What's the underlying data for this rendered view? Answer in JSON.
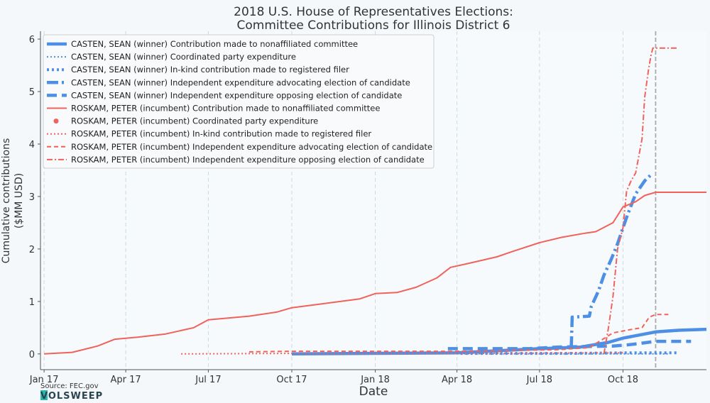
{
  "chart_data": {
    "type": "line",
    "title": [
      "2018 U.S. House of Representatives Elections:",
      "Committee Contributions for Illinois District 6"
    ],
    "xlabel": "Date",
    "ylabel": [
      "Cumulative contributions",
      "($MM USD)"
    ],
    "xlim": [
      "2016-12-28",
      "2019-01-01"
    ],
    "ylim": [
      -0.3,
      6.15
    ],
    "xticks": [
      {
        "date": "2017-01-01",
        "label": "Jan 17"
      },
      {
        "date": "2017-04-01",
        "label": "Apr 17"
      },
      {
        "date": "2017-07-01",
        "label": "Jul 17"
      },
      {
        "date": "2017-10-01",
        "label": "Oct 17"
      },
      {
        "date": "2018-01-01",
        "label": "Jan 18"
      },
      {
        "date": "2018-04-01",
        "label": "Apr 18"
      },
      {
        "date": "2018-07-01",
        "label": "Jul 18"
      },
      {
        "date": "2018-10-01",
        "label": "Oct 18"
      }
    ],
    "yticks": [
      0,
      1,
      2,
      3,
      4,
      5,
      6
    ],
    "grid": {
      "vertical": true,
      "horizontal": false
    },
    "election_line": "2018-11-06",
    "legend_position": "top-left",
    "series": [
      {
        "name": "CASTEN, SEAN (winner) Contribution made to nonaffiliated committee",
        "color": "#4e8fe6",
        "style": "solid",
        "width": 4.5,
        "points": [
          [
            "2017-10-01",
            0
          ],
          [
            "2018-04-01",
            0.02
          ],
          [
            "2018-07-01",
            0.1
          ],
          [
            "2018-08-15",
            0.13
          ],
          [
            "2018-09-15",
            0.22
          ],
          [
            "2018-10-01",
            0.3
          ],
          [
            "2018-11-06",
            0.42
          ],
          [
            "2018-12-01",
            0.45
          ],
          [
            "2019-01-01",
            0.47
          ]
        ]
      },
      {
        "name": "CASTEN, SEAN (winner) Coordinated party expenditure",
        "color": "#4e8fe6",
        "style": "dotted",
        "width": 2,
        "points": [
          [
            "2018-04-01",
            0
          ],
          [
            "2018-11-20",
            0
          ]
        ]
      },
      {
        "name": "CASTEN, SEAN (winner) In-kind contribution made to registered filer",
        "color": "#4e8fe6",
        "style": "dotted",
        "width": 4,
        "points": [
          [
            "2018-04-05",
            0.01
          ],
          [
            "2018-08-01",
            0.01
          ],
          [
            "2018-10-01",
            0.02
          ],
          [
            "2018-12-01",
            0.02
          ]
        ]
      },
      {
        "name": "CASTEN, SEAN (winner) Independent expenditure advocating election of candidate",
        "color": "#4e8fe6",
        "style": "dashdot",
        "width": 4.5,
        "points": [
          [
            "2018-08-05",
            0.12
          ],
          [
            "2018-08-06",
            0.7
          ],
          [
            "2018-08-25",
            0.72
          ],
          [
            "2018-08-27",
            0.9
          ],
          [
            "2018-09-04",
            1.2
          ],
          [
            "2018-09-10",
            1.5
          ],
          [
            "2018-09-18",
            1.8
          ],
          [
            "2018-09-25",
            2.1
          ],
          [
            "2018-10-01",
            2.4
          ],
          [
            "2018-10-06",
            2.65
          ],
          [
            "2018-10-15",
            3.05
          ],
          [
            "2018-10-25",
            3.3
          ],
          [
            "2018-10-31",
            3.4
          ]
        ]
      },
      {
        "name": "CASTEN, SEAN (winner) Independent expenditure opposing election of candidate",
        "color": "#4e8fe6",
        "style": "dashed",
        "width": 4.5,
        "points": [
          [
            "2018-03-22",
            0.1
          ],
          [
            "2018-05-15",
            0.1
          ],
          [
            "2018-06-20",
            0.1
          ],
          [
            "2018-07-20",
            0.13
          ],
          [
            "2018-09-20",
            0.15
          ],
          [
            "2018-10-05",
            0.17
          ],
          [
            "2018-10-20",
            0.2
          ],
          [
            "2018-11-06",
            0.24
          ],
          [
            "2018-12-15",
            0.24
          ]
        ]
      },
      {
        "name": "ROSKAM, PETER (incumbent) Contribution made to nonaffiliated committee",
        "color": "#f0625a",
        "style": "solid",
        "width": 2,
        "points": [
          [
            "2017-01-01",
            0
          ],
          [
            "2017-02-01",
            0.03
          ],
          [
            "2017-03-01",
            0.15
          ],
          [
            "2017-03-20",
            0.28
          ],
          [
            "2017-04-15",
            0.32
          ],
          [
            "2017-05-15",
            0.38
          ],
          [
            "2017-06-15",
            0.5
          ],
          [
            "2017-07-01",
            0.65
          ],
          [
            "2017-08-15",
            0.72
          ],
          [
            "2017-09-15",
            0.8
          ],
          [
            "2017-10-01",
            0.88
          ],
          [
            "2017-11-01",
            0.95
          ],
          [
            "2017-12-15",
            1.05
          ],
          [
            "2018-01-01",
            1.15
          ],
          [
            "2018-01-25",
            1.17
          ],
          [
            "2018-02-15",
            1.27
          ],
          [
            "2018-03-10",
            1.45
          ],
          [
            "2018-03-25",
            1.65
          ],
          [
            "2018-04-15",
            1.73
          ],
          [
            "2018-05-15",
            1.85
          ],
          [
            "2018-06-01",
            1.95
          ],
          [
            "2018-07-01",
            2.12
          ],
          [
            "2018-07-25",
            2.22
          ],
          [
            "2018-08-20",
            2.3
          ],
          [
            "2018-09-01",
            2.33
          ],
          [
            "2018-09-20",
            2.5
          ],
          [
            "2018-10-01",
            2.8
          ],
          [
            "2018-10-15",
            2.9
          ],
          [
            "2018-10-25",
            3.02
          ],
          [
            "2018-11-06",
            3.08
          ],
          [
            "2019-01-01",
            3.08
          ]
        ]
      },
      {
        "name": "ROSKAM, PETER (incumbent) Coordinated party expenditure",
        "color": "#f0625a",
        "style": "marker",
        "width": 0,
        "points": []
      },
      {
        "name": "ROSKAM, PETER (incumbent) In-kind contribution made to registered filer",
        "color": "#f0625a",
        "style": "dotted",
        "width": 2,
        "points": [
          [
            "2017-06-01",
            0
          ],
          [
            "2017-10-01",
            0.01
          ],
          [
            "2018-04-01",
            0.01
          ],
          [
            "2018-10-01",
            0.02
          ]
        ]
      },
      {
        "name": "ROSKAM, PETER (incumbent) Independent expenditure advocating election of candidate",
        "color": "#f0625a",
        "style": "dashed",
        "width": 2,
        "points": [
          [
            "2017-08-15",
            0.04
          ],
          [
            "2017-10-01",
            0.05
          ],
          [
            "2018-04-01",
            0.05
          ],
          [
            "2018-07-20",
            0.08
          ],
          [
            "2018-08-25",
            0.12
          ],
          [
            "2018-09-20",
            0.4
          ],
          [
            "2018-10-05",
            0.45
          ],
          [
            "2018-10-22",
            0.5
          ],
          [
            "2018-10-30",
            0.7
          ],
          [
            "2018-11-06",
            0.75
          ],
          [
            "2018-11-20",
            0.75
          ]
        ]
      },
      {
        "name": "ROSKAM, PETER (incumbent) Independent expenditure opposing election of candidate",
        "color": "#f0625a",
        "style": "dashdot",
        "width": 2,
        "points": [
          [
            "2018-09-10",
            0
          ],
          [
            "2018-09-15",
            0.5
          ],
          [
            "2018-09-20",
            1.1
          ],
          [
            "2018-09-25",
            2.0
          ],
          [
            "2018-10-01",
            2.4
          ],
          [
            "2018-10-05",
            3.1
          ],
          [
            "2018-10-10",
            3.3
          ],
          [
            "2018-10-15",
            3.45
          ],
          [
            "2018-10-22",
            4.1
          ],
          [
            "2018-10-25",
            4.9
          ],
          [
            "2018-10-29",
            5.4
          ],
          [
            "2018-11-01",
            5.7
          ],
          [
            "2018-11-03",
            5.83
          ],
          [
            "2018-12-01",
            5.83
          ]
        ]
      }
    ],
    "source": "Source: FEC.gov",
    "logo": "VOLSWEEP"
  }
}
